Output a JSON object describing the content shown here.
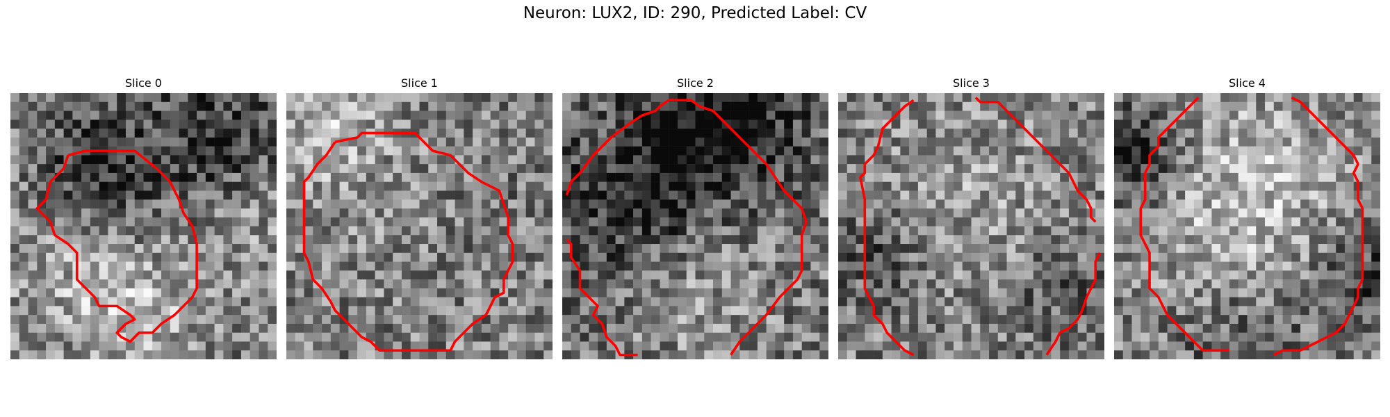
{
  "figure": {
    "title": "Neuron: LUX2, ID: 290, Predicted Label: CV"
  },
  "panels": [
    {
      "title": "Slice 0"
    },
    {
      "title": "Slice 1"
    },
    {
      "title": "Slice 2"
    },
    {
      "title": "Slice 3"
    },
    {
      "title": "Slice 4"
    }
  ],
  "colors": {
    "contour": "#ff0000",
    "background": "#ffffff"
  }
}
